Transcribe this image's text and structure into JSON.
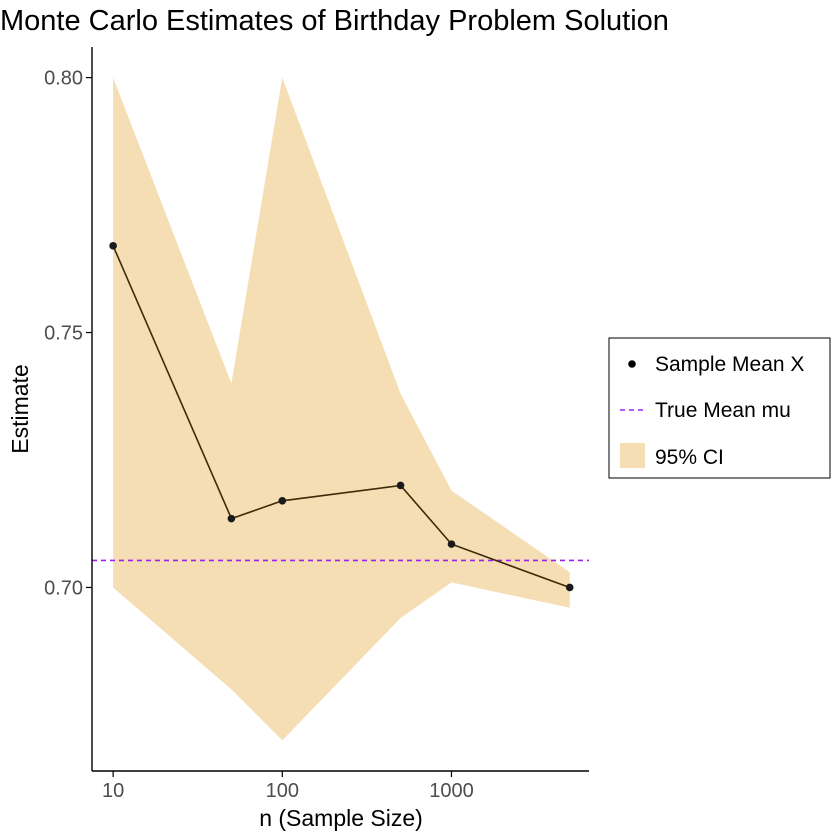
{
  "chart_data": {
    "type": "line",
    "title": "Monte Carlo Estimates of Birthday Problem Solution",
    "xlabel": "n (Sample Size)",
    "ylabel": "Estimate",
    "x_scale": "log10",
    "xlim": [
      7.5,
      6500
    ],
    "ylim": [
      0.664,
      0.806
    ],
    "x_ticks": [
      {
        "value": 10,
        "label": "10"
      },
      {
        "value": 100,
        "label": "100"
      },
      {
        "value": 1000,
        "label": "1000"
      }
    ],
    "y_ticks": [
      {
        "value": 0.7,
        "label": "0.70"
      },
      {
        "value": 0.75,
        "label": "0.75"
      },
      {
        "value": 0.8,
        "label": "0.80"
      }
    ],
    "grid": false,
    "legend_position": "right",
    "x": [
      10,
      50,
      100,
      500,
      1000,
      5000
    ],
    "series": [
      {
        "name": "Sample Mean X",
        "kind": "line+points",
        "color": "#3d2a08",
        "values": [
          0.767,
          0.7135,
          0.717,
          0.72,
          0.7085,
          0.7
        ]
      },
      {
        "name": "True Mean mu",
        "kind": "hline",
        "color": "#a020f0",
        "value": 0.7053
      },
      {
        "name": "95% CI",
        "kind": "band",
        "color": "#f5deb3",
        "lower": [
          0.7,
          0.68,
          0.67,
          0.694,
          0.701,
          0.696
        ],
        "upper": [
          0.8,
          0.74,
          0.8,
          0.738,
          0.719,
          0.703
        ]
      }
    ]
  }
}
